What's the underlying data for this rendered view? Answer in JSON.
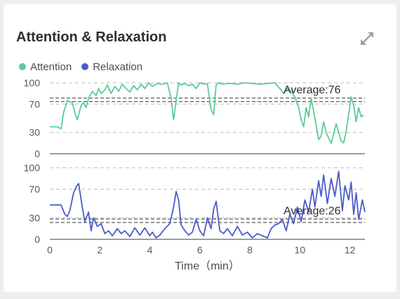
{
  "card": {
    "title": "Attention & Relaxation",
    "expand_icon": "expand-diagonal-icon"
  },
  "colors": {
    "attention": "#5ccb96",
    "relaxation": "#4a5cc8",
    "grid": "#bdbdbd",
    "axis": "#5f6368",
    "average_line": "#333333"
  },
  "chart_data": [
    {
      "type": "line",
      "xlim": [
        0,
        12.6
      ],
      "ylim": [
        0,
        100
      ],
      "y_ticks": [
        "0",
        "30",
        "70",
        "100"
      ],
      "grid": "dashed horizontal",
      "series": [
        {
          "name": "Attention",
          "x": [
            0,
            0.3,
            0.45,
            0.55,
            0.7,
            0.9,
            1.0,
            1.1,
            1.25,
            1.35,
            1.45,
            1.55,
            1.7,
            1.85,
            1.95,
            2.05,
            2.2,
            2.3,
            2.45,
            2.6,
            2.75,
            2.9,
            3.05,
            3.2,
            3.35,
            3.5,
            3.65,
            3.8,
            3.95,
            4.1,
            4.3,
            4.5,
            4.7,
            4.85,
            4.95,
            5.05,
            5.15,
            5.25,
            5.4,
            5.55,
            5.7,
            5.85,
            6.0,
            6.15,
            6.3,
            6.45,
            6.55,
            6.65,
            6.75,
            6.9,
            7.1,
            7.3,
            7.5,
            7.8,
            8.1,
            8.4,
            8.7,
            9.0,
            9.2,
            9.35,
            9.5,
            9.65,
            9.8,
            9.95,
            10.05,
            10.15,
            10.25,
            10.35,
            10.45,
            10.55,
            10.65,
            10.75,
            10.85,
            10.95,
            11.05,
            11.15,
            11.25,
            11.35,
            11.45,
            11.55,
            11.65,
            11.75,
            11.85,
            11.95,
            12.05,
            12.15,
            12.25,
            12.35,
            12.45,
            12.55
          ],
          "y": [
            38,
            38,
            35,
            58,
            75,
            72,
            58,
            48,
            68,
            72,
            65,
            78,
            88,
            82,
            92,
            85,
            90,
            97,
            85,
            95,
            88,
            98,
            92,
            87,
            96,
            90,
            98,
            92,
            100,
            95,
            99,
            98,
            100,
            78,
            48,
            75,
            100,
            97,
            99,
            96,
            98,
            92,
            100,
            98,
            99,
            62,
            55,
            97,
            100,
            98,
            99,
            99,
            98,
            100,
            99,
            98,
            99,
            100,
            92,
            85,
            92,
            88,
            80,
            65,
            48,
            38,
            65,
            52,
            78,
            60,
            40,
            20,
            25,
            45,
            30,
            22,
            15,
            28,
            42,
            30,
            18,
            15,
            32,
            55,
            80,
            68,
            45,
            65,
            52,
            55
          ]
        }
      ],
      "annotations": [
        {
          "text": "Average:76",
          "y": 76
        }
      ]
    },
    {
      "type": "line",
      "xlim": [
        0,
        12.6
      ],
      "ylim": [
        0,
        100
      ],
      "x_ticks": [
        "0",
        "2",
        "4",
        "6",
        "8",
        "10",
        "12"
      ],
      "y_ticks": [
        "0",
        "30",
        "70",
        "100"
      ],
      "xlabel": "Time（min）",
      "grid": "dashed horizontal",
      "series": [
        {
          "name": "Relaxation",
          "x": [
            0,
            0.3,
            0.45,
            0.6,
            0.7,
            0.8,
            0.95,
            1.05,
            1.15,
            1.3,
            1.4,
            1.55,
            1.65,
            1.75,
            1.9,
            2.05,
            2.2,
            2.35,
            2.5,
            2.7,
            2.85,
            3.0,
            3.2,
            3.4,
            3.6,
            3.8,
            4.0,
            4.1,
            4.25,
            4.4,
            4.6,
            4.8,
            4.95,
            5.05,
            5.15,
            5.25,
            5.4,
            5.55,
            5.7,
            5.85,
            6.0,
            6.15,
            6.3,
            6.45,
            6.55,
            6.65,
            6.8,
            6.95,
            7.1,
            7.3,
            7.5,
            7.7,
            7.9,
            8.1,
            8.3,
            8.5,
            8.7,
            8.85,
            9.0,
            9.15,
            9.3,
            9.45,
            9.6,
            9.75,
            9.9,
            10.05,
            10.2,
            10.35,
            10.5,
            10.6,
            10.75,
            10.85,
            10.95,
            11.1,
            11.25,
            11.4,
            11.55,
            11.7,
            11.8,
            11.95,
            12.05,
            12.15,
            12.25,
            12.35,
            12.5,
            12.6
          ],
          "y": [
            48,
            48,
            48,
            35,
            32,
            40,
            65,
            73,
            78,
            45,
            25,
            38,
            12,
            30,
            18,
            22,
            8,
            12,
            5,
            15,
            8,
            12,
            4,
            16,
            6,
            16,
            5,
            10,
            2,
            6,
            15,
            22,
            45,
            67,
            55,
            20,
            12,
            6,
            10,
            28,
            12,
            5,
            30,
            15,
            42,
            53,
            12,
            8,
            15,
            5,
            18,
            6,
            10,
            2,
            8,
            5,
            2,
            15,
            20,
            22,
            28,
            12,
            35,
            22,
            45,
            25,
            55,
            38,
            70,
            45,
            82,
            60,
            90,
            50,
            85,
            60,
            95,
            40,
            75,
            55,
            80,
            35,
            65,
            28,
            55,
            38
          ]
        }
      ],
      "annotations": [
        {
          "text": "Average:26",
          "y": 26
        }
      ]
    }
  ]
}
